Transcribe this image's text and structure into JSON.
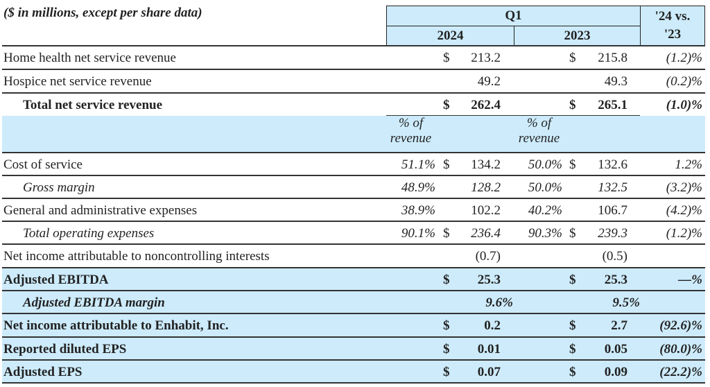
{
  "header": {
    "caption": "($ in millions, except per share data)",
    "period": "Q1",
    "year_current": "2024",
    "year_prior": "2023",
    "change_label_1": "'24 vs.",
    "change_label_2": "'23"
  },
  "pct_header": {
    "line1": "% of",
    "line2": "revenue"
  },
  "colors": {
    "highlight": "#cdebfb",
    "border": "#222222"
  },
  "rows": [
    {
      "label": "Home health net service revenue",
      "pct24": "",
      "d24": "$",
      "v24": "213.2",
      "pct23": "",
      "d23": "$",
      "v23": "215.8",
      "chg": "(1.2)%",
      "style": "plain"
    },
    {
      "label": "Hospice net service revenue",
      "pct24": "",
      "d24": "",
      "v24": "49.2",
      "pct23": "",
      "d23": "",
      "v23": "49.3",
      "chg": "(0.2)%",
      "style": "plain"
    },
    {
      "label": "Total net service revenue",
      "pct24": "",
      "d24": "$",
      "v24": "262.4",
      "pct23": "",
      "d23": "$",
      "v23": "265.1",
      "chg": "(1.0)%",
      "style": "bold-indent"
    },
    {
      "label": "Cost of service",
      "pct24": "51.1%",
      "d24": "$",
      "v24": "134.2",
      "pct23": "50.0%",
      "d23": "$",
      "v23": "132.6",
      "chg": "1.2%",
      "style": "plain"
    },
    {
      "label": "Gross margin",
      "pct24": "48.9%",
      "d24": "",
      "v24": "128.2",
      "pct23": "50.0%",
      "d23": "",
      "v23": "132.5",
      "chg": "(3.2)%",
      "style": "italic-indent"
    },
    {
      "label": "General and administrative expenses",
      "pct24": "38.9%",
      "d24": "",
      "v24": "102.2",
      "pct23": "40.2%",
      "d23": "",
      "v23": "106.7",
      "chg": "(4.2)%",
      "style": "plain"
    },
    {
      "label": "Total operating expenses",
      "pct24": "90.1%",
      "d24": "$",
      "v24": "236.4",
      "pct23": "90.3%",
      "d23": "$",
      "v23": "239.3",
      "chg": "(1.2)%",
      "style": "italic-indent"
    },
    {
      "label": "Net income attributable to noncontrolling interests",
      "pct24": "",
      "d24": "",
      "v24": "(0.7)",
      "pct23": "",
      "d23": "",
      "v23": "(0.5)",
      "chg": "",
      "style": "plain"
    },
    {
      "label": "Adjusted EBITDA",
      "pct24": "",
      "d24": "$",
      "v24": "25.3",
      "pct23": "",
      "d23": "$",
      "v23": "25.3",
      "chg": "—%",
      "style": "bold-blue"
    },
    {
      "label": "Adjusted EBITDA margin",
      "pct24": "",
      "d24": "",
      "v24": "9.6%",
      "pct23": "",
      "d23": "",
      "v23": "9.5%",
      "chg": "",
      "style": "bolditalic-blue"
    },
    {
      "label": "Net income attributable to Enhabit, Inc.",
      "pct24": "",
      "d24": "$",
      "v24": "0.2",
      "pct23": "",
      "d23": "$",
      "v23": "2.7",
      "chg": "(92.6)%",
      "style": "bold-blue"
    },
    {
      "label": "Reported diluted EPS",
      "pct24": "",
      "d24": "$",
      "v24": "0.01",
      "pct23": "",
      "d23": "$",
      "v23": "0.05",
      "chg": "(80.0)%",
      "style": "bold-blue"
    },
    {
      "label": "Adjusted EPS",
      "pct24": "",
      "d24": "$",
      "v24": "0.07",
      "pct23": "",
      "d23": "$",
      "v23": "0.09",
      "chg": "(22.2)%",
      "style": "bold-blue"
    }
  ]
}
